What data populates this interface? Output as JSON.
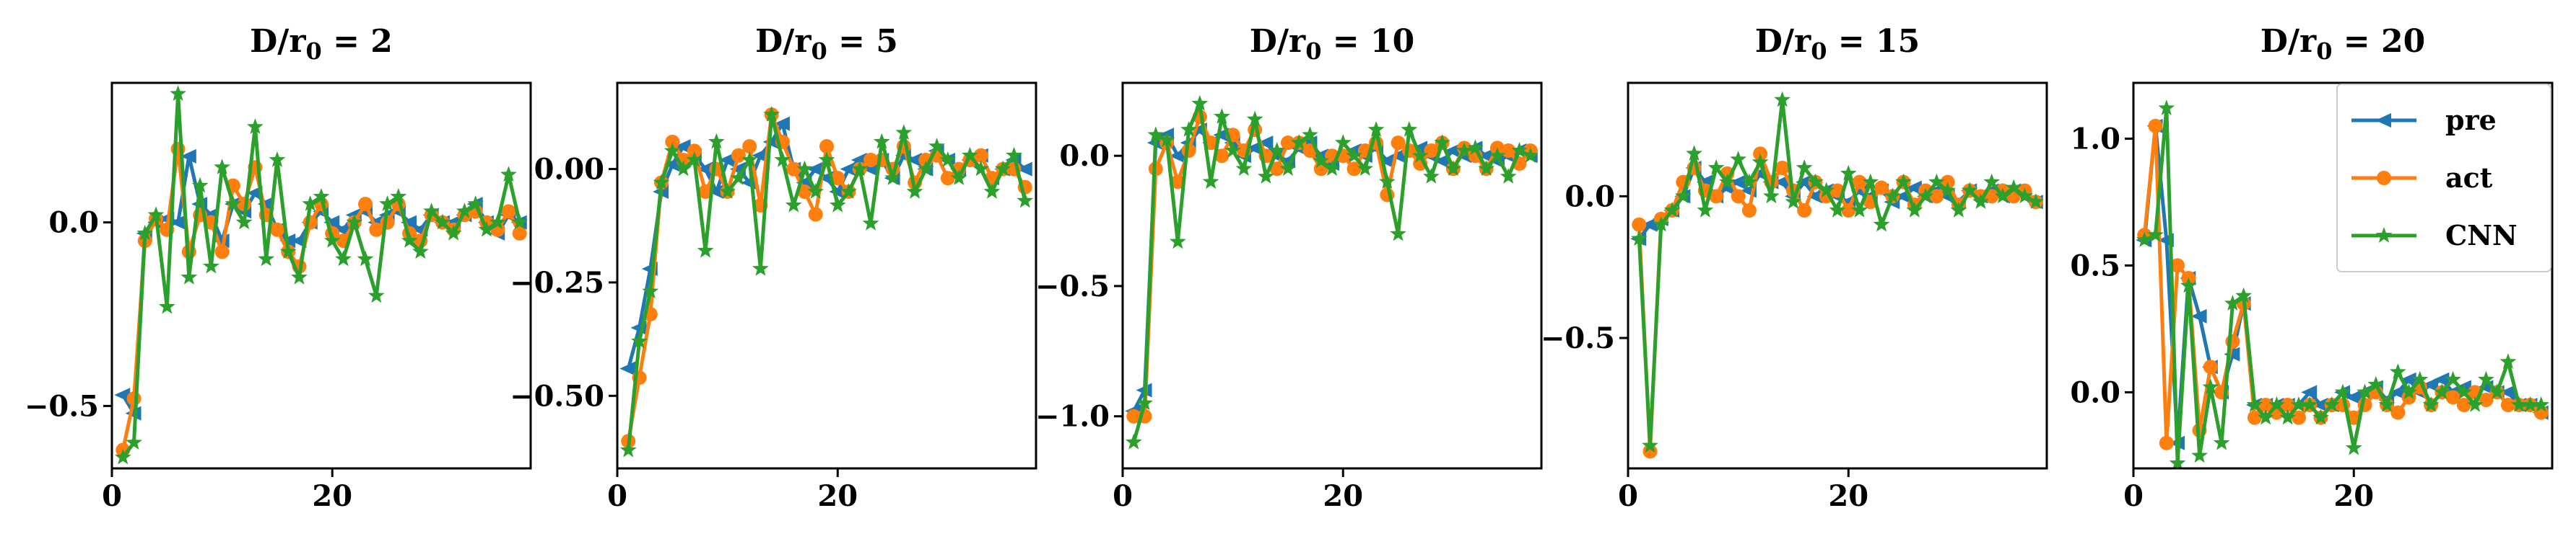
{
  "colors": {
    "pre": "#1f77b4",
    "act": "#ff7f0e",
    "CNN": "#2ca02c"
  },
  "legend": {
    "placement": "top-right",
    "entries": [
      {
        "label": "pre",
        "marker": "triangle-left",
        "color": "#1f77b4"
      },
      {
        "label": "act",
        "marker": "circle",
        "color": "#ff7f0e"
      },
      {
        "label": "CNN",
        "marker": "star",
        "color": "#2ca02c"
      }
    ]
  },
  "chart_data": [
    {
      "type": "line",
      "title_main": "D/r",
      "title_sub": "0",
      "title_value": " = 2",
      "xlim": [
        0,
        38
      ],
      "ylim": [
        -0.67,
        0.38
      ],
      "xticks": [
        0,
        20
      ],
      "xtick_labels": [
        "0",
        "20"
      ],
      "yticks": [
        -0.5,
        0.0
      ],
      "ytick_labels": [
        "−0.5",
        "0.0"
      ],
      "x": [
        1,
        2,
        3,
        4,
        5,
        6,
        7,
        8,
        9,
        10,
        11,
        12,
        13,
        14,
        15,
        16,
        17,
        18,
        19,
        20,
        21,
        22,
        23,
        24,
        25,
        26,
        27,
        28,
        29,
        30,
        31,
        32,
        33,
        34,
        35,
        36,
        37
      ],
      "series": [
        {
          "name": "pre",
          "values": [
            -0.47,
            -0.52,
            -0.03,
            0.0,
            0.01,
            0.0,
            0.18,
            0.05,
            0.02,
            -0.05,
            0.05,
            0.03,
            0.08,
            0.05,
            -0.02,
            -0.05,
            -0.05,
            0.0,
            0.03,
            0.0,
            -0.02,
            0.02,
            0.03,
            0.0,
            0.02,
            0.03,
            0.0,
            -0.02,
            0.02,
            0.0,
            0.0,
            0.02,
            0.05,
            0.0,
            -0.03,
            0.02,
            0.0
          ]
        },
        {
          "name": "act",
          "values": [
            -0.62,
            -0.48,
            -0.05,
            0.01,
            -0.02,
            0.2,
            -0.08,
            0.02,
            0.0,
            -0.08,
            0.1,
            0.05,
            0.15,
            0.02,
            -0.02,
            -0.08,
            -0.12,
            0.0,
            0.05,
            -0.03,
            -0.05,
            0.0,
            0.05,
            -0.02,
            0.0,
            0.05,
            -0.03,
            -0.05,
            0.02,
            0.0,
            -0.02,
            0.02,
            0.03,
            0.0,
            -0.02,
            0.03,
            -0.03
          ]
        },
        {
          "name": "CNN",
          "values": [
            -0.64,
            -0.6,
            -0.03,
            0.02,
            -0.23,
            0.35,
            -0.15,
            0.1,
            -0.12,
            0.15,
            0.05,
            0.0,
            0.26,
            -0.1,
            0.17,
            -0.08,
            -0.15,
            0.05,
            0.07,
            -0.05,
            -0.1,
            0.0,
            -0.1,
            -0.2,
            0.05,
            0.07,
            -0.05,
            -0.08,
            0.03,
            0.0,
            -0.03,
            0.03,
            0.05,
            -0.02,
            0.0,
            0.13,
            0.0
          ]
        }
      ]
    },
    {
      "type": "line",
      "title_main": "D/r",
      "title_sub": "0",
      "title_value": " = 5",
      "xlim": [
        0,
        38
      ],
      "ylim": [
        -0.66,
        0.19
      ],
      "xticks": [
        0,
        20
      ],
      "xtick_labels": [
        "0",
        "20"
      ],
      "yticks": [
        -0.5,
        -0.25,
        0.0
      ],
      "ytick_labels": [
        "−0.50",
        "−0.25",
        "0.00"
      ],
      "x": [
        1,
        2,
        3,
        4,
        5,
        6,
        7,
        8,
        9,
        10,
        11,
        12,
        13,
        14,
        15,
        16,
        17,
        18,
        19,
        20,
        21,
        22,
        23,
        24,
        25,
        26,
        27,
        28,
        29,
        30,
        31,
        32,
        33,
        34,
        35,
        36,
        37
      ],
      "series": [
        {
          "name": "pre",
          "values": [
            -0.44,
            -0.35,
            -0.22,
            -0.05,
            0.01,
            0.05,
            0.03,
            0.0,
            -0.05,
            0.02,
            0.0,
            -0.03,
            0.03,
            0.06,
            0.1,
            0.0,
            -0.03,
            0.0,
            -0.02,
            -0.05,
            0.0,
            0.02,
            0.0,
            0.02,
            -0.02,
            0.03,
            0.02,
            0.0,
            0.04,
            0.02,
            0.0,
            0.02,
            0.03,
            -0.02,
            0.0,
            0.02,
            0.0
          ]
        },
        {
          "name": "act",
          "values": [
            -0.6,
            -0.46,
            -0.32,
            -0.03,
            0.06,
            0.02,
            0.04,
            -0.05,
            0.0,
            -0.05,
            0.03,
            0.05,
            -0.08,
            0.12,
            0.06,
            0.0,
            -0.05,
            -0.1,
            0.05,
            -0.02,
            -0.05,
            0.0,
            0.02,
            0.02,
            0.0,
            0.05,
            -0.03,
            0.02,
            0.03,
            -0.02,
            0.0,
            0.02,
            0.03,
            -0.02,
            0.0,
            0.0,
            -0.04
          ]
        },
        {
          "name": "CNN",
          "values": [
            -0.62,
            -0.38,
            -0.27,
            -0.03,
            0.04,
            0.0,
            0.02,
            -0.18,
            0.06,
            -0.05,
            -0.02,
            0.02,
            -0.22,
            0.12,
            0.02,
            -0.08,
            0.0,
            -0.05,
            0.02,
            -0.08,
            -0.05,
            0.0,
            -0.12,
            0.06,
            -0.02,
            0.08,
            -0.05,
            0.0,
            0.05,
            0.02,
            -0.02,
            0.03,
            0.0,
            -0.05,
            0.0,
            0.03,
            -0.07
          ]
        }
      ]
    },
    {
      "type": "line",
      "title_main": "D/r",
      "title_sub": "0",
      "title_value": " = 10",
      "xlim": [
        0,
        38
      ],
      "ylim": [
        -1.2,
        0.28
      ],
      "xticks": [
        0,
        20
      ],
      "xtick_labels": [
        "0",
        "20"
      ],
      "yticks": [
        -1.0,
        -0.5,
        0.0
      ],
      "ytick_labels": [
        "−1.0",
        "−0.5",
        "0.0"
      ],
      "x": [
        1,
        2,
        3,
        4,
        5,
        6,
        7,
        8,
        9,
        10,
        11,
        12,
        13,
        14,
        15,
        16,
        17,
        18,
        19,
        20,
        21,
        22,
        23,
        24,
        25,
        26,
        27,
        28,
        29,
        30,
        31,
        32,
        33,
        34,
        35,
        36,
        37
      ],
      "series": [
        {
          "name": "pre",
          "values": [
            -0.98,
            -0.9,
            0.05,
            0.08,
            0.0,
            0.05,
            0.1,
            0.05,
            0.08,
            0.05,
            0.0,
            0.03,
            0.05,
            0.0,
            -0.02,
            0.03,
            0.05,
            0.0,
            -0.03,
            0.0,
            0.02,
            0.0,
            0.03,
            -0.02,
            0.0,
            0.02,
            0.03,
            0.0,
            -0.02,
            0.02,
            0.0,
            0.03,
            0.0,
            -0.02,
            0.0,
            0.02,
            0.0
          ]
        },
        {
          "name": "act",
          "values": [
            -1.0,
            -1.0,
            -0.05,
            0.05,
            -0.1,
            0.02,
            0.15,
            0.05,
            0.0,
            0.08,
            0.02,
            0.1,
            0.0,
            -0.05,
            0.05,
            0.05,
            0.02,
            -0.05,
            0.0,
            0.0,
            -0.05,
            0.02,
            0.05,
            -0.15,
            0.05,
            0.02,
            -0.03,
            0.02,
            0.05,
            -0.05,
            0.03,
            0.0,
            -0.05,
            0.03,
            0.02,
            -0.03,
            0.02
          ]
        },
        {
          "name": "CNN",
          "values": [
            -1.1,
            -0.95,
            0.08,
            0.06,
            -0.33,
            0.1,
            0.2,
            -0.1,
            0.15,
            0.02,
            -0.05,
            0.14,
            -0.08,
            0.02,
            -0.05,
            0.05,
            0.08,
            -0.02,
            -0.05,
            0.05,
            0.0,
            -0.05,
            0.1,
            -0.1,
            -0.3,
            0.1,
            0.0,
            -0.08,
            0.05,
            -0.05,
            0.02,
            0.03,
            -0.05,
            0.0,
            -0.08,
            0.02,
            0.0
          ]
        }
      ]
    },
    {
      "type": "line",
      "title_main": "D/r",
      "title_sub": "0",
      "title_value": " = 15",
      "xlim": [
        0,
        38
      ],
      "ylim": [
        -0.96,
        0.4
      ],
      "xticks": [
        0,
        20
      ],
      "xtick_labels": [
        "0",
        "20"
      ],
      "yticks": [
        -0.5,
        0.0
      ],
      "ytick_labels": [
        "−0.5",
        "0.0"
      ],
      "x": [
        1,
        2,
        3,
        4,
        5,
        6,
        7,
        8,
        9,
        10,
        11,
        12,
        13,
        14,
        15,
        16,
        17,
        18,
        19,
        20,
        21,
        22,
        23,
        24,
        25,
        26,
        27,
        28,
        29,
        30,
        31,
        32,
        33,
        34,
        35,
        36,
        37
      ],
      "series": [
        {
          "name": "pre",
          "values": [
            -0.15,
            -0.1,
            -0.08,
            -0.05,
            0.0,
            0.1,
            0.05,
            0.0,
            0.03,
            0.05,
            0.02,
            0.08,
            0.05,
            0.05,
            0.0,
            0.05,
            0.0,
            0.02,
            0.0,
            -0.02,
            0.02,
            0.0,
            0.02,
            -0.02,
            0.0,
            0.03,
            0.0,
            0.02,
            0.0,
            -0.02,
            0.02,
            0.0,
            0.02,
            0.0,
            0.02,
            0.0,
            -0.02
          ]
        },
        {
          "name": "act",
          "values": [
            -0.1,
            -0.9,
            -0.08,
            -0.05,
            0.05,
            0.1,
            0.02,
            0.0,
            0.08,
            0.0,
            -0.05,
            0.15,
            0.05,
            0.1,
            0.02,
            -0.05,
            0.05,
            0.0,
            0.02,
            -0.05,
            0.05,
            -0.02,
            0.03,
            0.0,
            0.05,
            -0.03,
            0.02,
            0.0,
            0.05,
            -0.03,
            0.02,
            0.0,
            0.0,
            0.02,
            0.0,
            0.02,
            -0.02
          ]
        },
        {
          "name": "CNN",
          "values": [
            -0.15,
            -0.88,
            -0.1,
            -0.05,
            0.0,
            0.15,
            -0.05,
            0.1,
            0.05,
            0.13,
            0.05,
            0.12,
            0.0,
            0.34,
            -0.02,
            0.1,
            0.05,
            0.02,
            -0.05,
            0.08,
            -0.05,
            0.05,
            -0.1,
            0.0,
            0.05,
            -0.05,
            0.0,
            0.05,
            0.02,
            -0.05,
            0.02,
            -0.02,
            0.05,
            0.0,
            0.03,
            0.0,
            -0.02
          ]
        }
      ]
    },
    {
      "type": "line",
      "title_main": "D/r",
      "title_sub": "0",
      "title_value": " = 20",
      "xlim": [
        0,
        38
      ],
      "ylim": [
        -0.3,
        1.22
      ],
      "xticks": [
        0,
        20
      ],
      "xtick_labels": [
        "0",
        "20"
      ],
      "yticks": [
        0.0,
        0.5,
        1.0
      ],
      "ytick_labels": [
        "0.0",
        "0.5",
        "1.0"
      ],
      "x": [
        1,
        2,
        3,
        4,
        5,
        6,
        7,
        8,
        9,
        10,
        11,
        12,
        13,
        14,
        15,
        16,
        17,
        18,
        19,
        20,
        21,
        22,
        23,
        24,
        25,
        26,
        27,
        28,
        29,
        30,
        31,
        32,
        33,
        34,
        35,
        36,
        37
      ],
      "series": [
        {
          "name": "pre",
          "values": [
            0.6,
            1.05,
            0.6,
            -0.2,
            0.45,
            0.3,
            0.1,
            0.0,
            0.15,
            0.35,
            -0.05,
            -0.05,
            -0.05,
            -0.05,
            -0.05,
            0.0,
            -0.05,
            -0.05,
            0.0,
            -0.02,
            0.0,
            0.02,
            -0.03,
            0.0,
            0.05,
            0.0,
            0.03,
            0.05,
            0.0,
            0.02,
            0.0,
            0.02,
            0.0,
            0.0,
            -0.05,
            -0.05,
            -0.08
          ]
        },
        {
          "name": "act",
          "values": [
            0.62,
            1.05,
            -0.2,
            0.5,
            0.45,
            -0.15,
            0.1,
            0.0,
            0.2,
            0.35,
            -0.1,
            -0.05,
            -0.08,
            -0.05,
            -0.1,
            -0.05,
            -0.1,
            -0.05,
            -0.05,
            -0.1,
            -0.05,
            0.0,
            -0.05,
            -0.08,
            -0.02,
            0.02,
            -0.05,
            0.0,
            -0.02,
            -0.05,
            0.0,
            -0.03,
            0.0,
            -0.05,
            -0.05,
            -0.05,
            -0.08
          ]
        },
        {
          "name": "CNN",
          "values": [
            0.6,
            0.62,
            1.12,
            -0.28,
            0.42,
            -0.25,
            0.02,
            -0.2,
            0.35,
            0.38,
            -0.05,
            -0.1,
            -0.05,
            -0.1,
            -0.05,
            -0.05,
            -0.1,
            -0.05,
            0.0,
            -0.22,
            0.0,
            0.03,
            -0.05,
            0.08,
            0.0,
            0.05,
            -0.05,
            0.0,
            0.05,
            0.0,
            -0.05,
            0.05,
            0.0,
            0.12,
            -0.05,
            -0.05,
            -0.05
          ]
        }
      ]
    }
  ]
}
